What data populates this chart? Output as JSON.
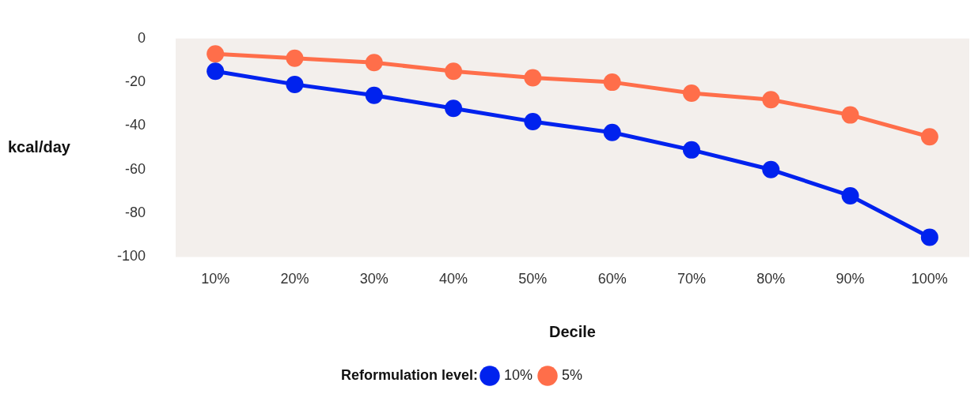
{
  "chart_data": {
    "type": "line",
    "xlabel": "Decile",
    "ylabel": "kcal/day",
    "legend_title": "Reformulation level:",
    "categories": [
      "10%",
      "20%",
      "30%",
      "40%",
      "50%",
      "60%",
      "70%",
      "80%",
      "90%",
      "100%"
    ],
    "series": [
      {
        "name": "10%",
        "color": "#0022ee",
        "values": [
          -15,
          -21,
          -26,
          -32,
          -38,
          -43,
          -51,
          -60,
          -72,
          -91
        ]
      },
      {
        "name": "5%",
        "color": "#ff6e4a",
        "values": [
          -7,
          -9,
          -11,
          -15,
          -18,
          -20,
          -25,
          -28,
          -35,
          -45
        ]
      }
    ],
    "ylim": [
      -100,
      0
    ],
    "yticks": [
      0,
      -20,
      -40,
      -60,
      -80,
      -100
    ],
    "grid": false,
    "legend": "bottom",
    "marker": "circle",
    "line_style": "solid"
  }
}
